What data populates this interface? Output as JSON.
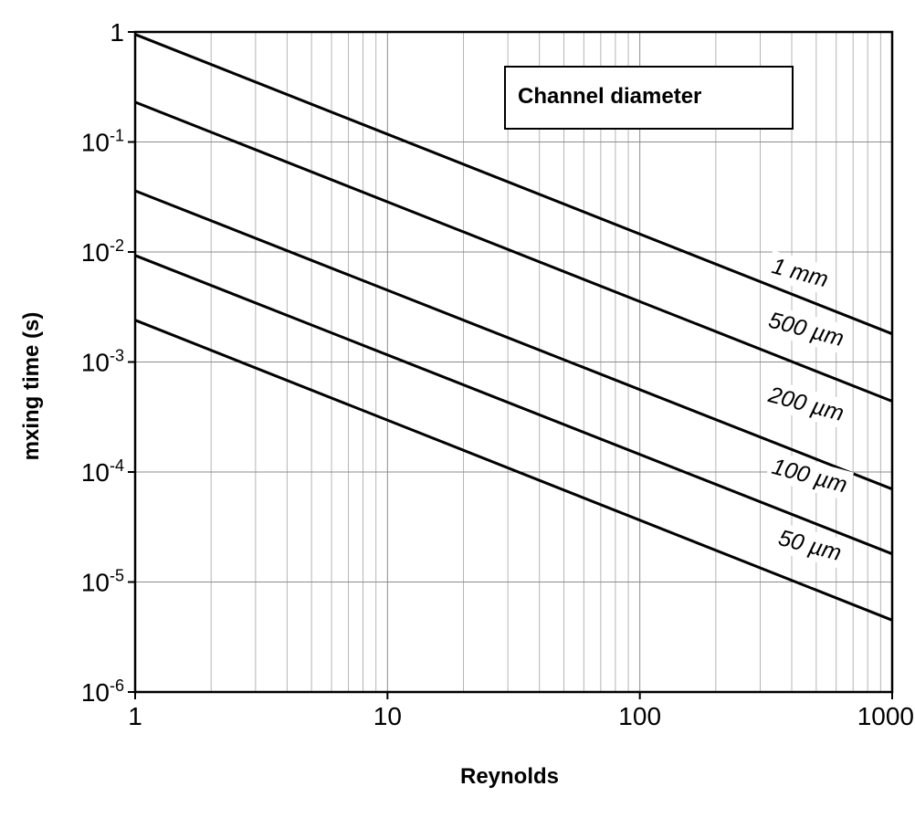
{
  "chart_data": {
    "type": "line",
    "title": "",
    "xlabel": "Reynolds",
    "ylabel": "mxing time (s)",
    "x_scale": "log",
    "y_scale": "log",
    "xlim": [
      1,
      1000
    ],
    "ylim": [
      1e-06,
      1
    ],
    "grid": true,
    "legend": {
      "title": "Channel diameter",
      "placement": "top-right"
    },
    "x_ticks": [
      {
        "value": 1,
        "label": "1"
      },
      {
        "value": 10,
        "label": "10"
      },
      {
        "value": 100,
        "label": "100"
      },
      {
        "value": 1000,
        "label": "1000"
      }
    ],
    "y_ticks": [
      {
        "value": 1,
        "base": "1",
        "exp": ""
      },
      {
        "value": 0.1,
        "base": "10",
        "exp": "-1"
      },
      {
        "value": 0.01,
        "base": "10",
        "exp": "-2"
      },
      {
        "value": 0.001,
        "base": "10",
        "exp": "-3"
      },
      {
        "value": 0.0001,
        "base": "10",
        "exp": "-4"
      },
      {
        "value": 1e-05,
        "base": "10",
        "exp": "-5"
      },
      {
        "value": 1e-06,
        "base": "10",
        "exp": "-6"
      }
    ],
    "series": [
      {
        "name": "1 mm",
        "x": [
          1,
          1000
        ],
        "y": [
          0.95,
          0.0018
        ],
        "label_at": [
          330,
          0.0065
        ],
        "label_angle": 15
      },
      {
        "name": "500 µm",
        "x": [
          1,
          1000
        ],
        "y": [
          0.23,
          0.00044
        ],
        "label_at": [
          320,
          0.0021
        ],
        "label_angle": 15
      },
      {
        "name": "200 µm",
        "x": [
          1,
          1000
        ],
        "y": [
          0.036,
          7e-05
        ],
        "label_at": [
          320,
          0.00044
        ],
        "label_angle": 15
      },
      {
        "name": "100 µm",
        "x": [
          1,
          1000
        ],
        "y": [
          0.0093,
          1.8e-05
        ],
        "label_at": [
          330,
          9.8e-05
        ],
        "label_angle": 15
      },
      {
        "name": "50 µm",
        "x": [
          1,
          1000
        ],
        "y": [
          0.0024,
          4.5e-06
        ],
        "label_at": [
          350,
          2.2e-05
        ],
        "label_angle": 15
      }
    ]
  }
}
